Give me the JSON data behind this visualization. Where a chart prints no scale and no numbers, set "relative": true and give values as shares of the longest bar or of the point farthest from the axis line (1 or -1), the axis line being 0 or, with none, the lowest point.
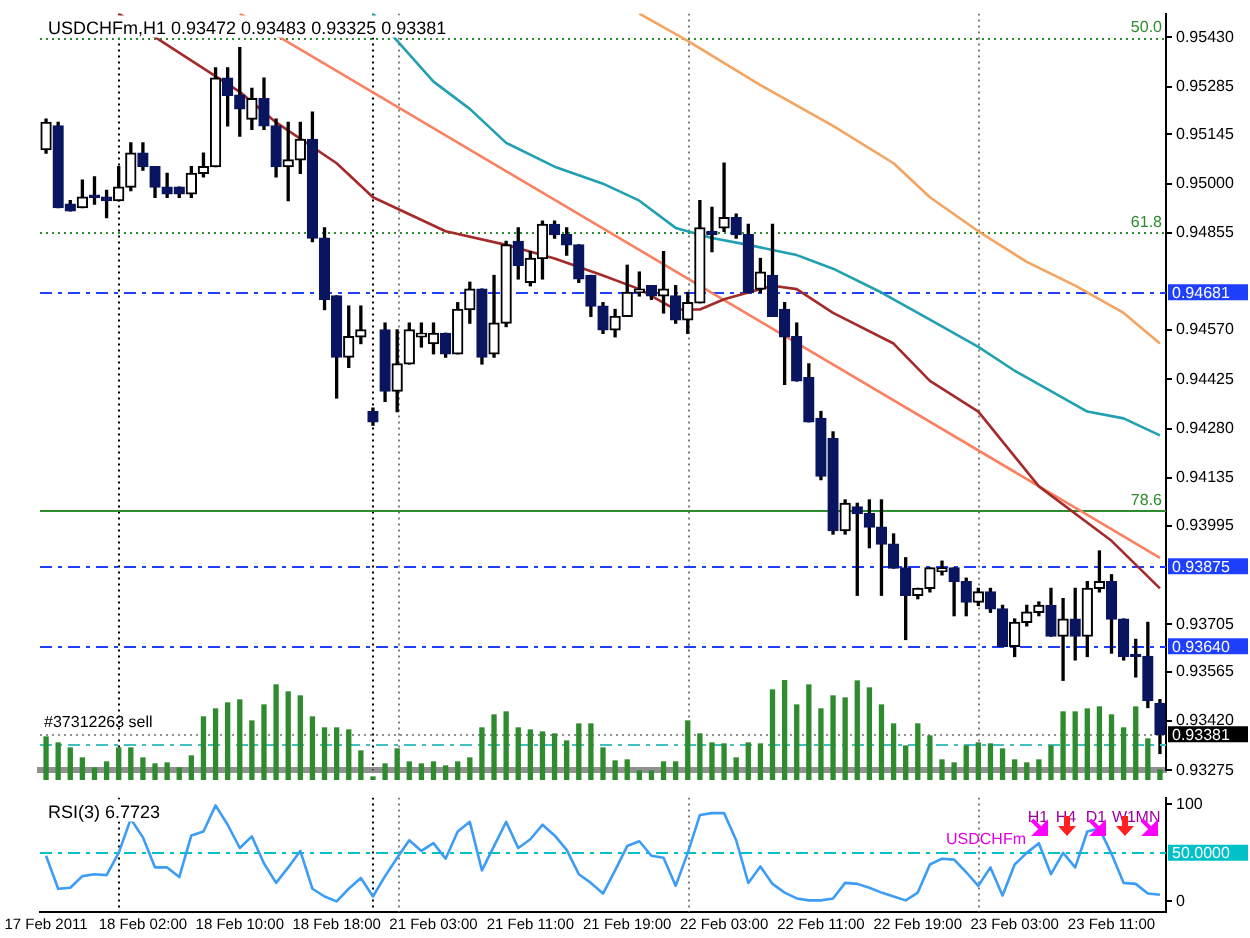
{
  "chart_data": [
    {
      "type": "candlestick",
      "title": "USDCHFm,H1 0.93472 0.93483 0.93325 0.93381",
      "tick_labels": "y",
      "categories": [
        "17 Feb 2011",
        null,
        null,
        null,
        null,
        null,
        null,
        null,
        "18 Feb 02:00",
        null,
        null,
        null,
        null,
        null,
        null,
        null,
        "18 Feb 10:00",
        null,
        null,
        null,
        null,
        null,
        null,
        null,
        "18 Feb 18:00",
        null,
        null,
        null,
        null,
        null,
        null,
        null,
        "21 Feb 03:00",
        null,
        null,
        null,
        null,
        null,
        null,
        null,
        "21 Feb 11:00",
        null,
        null,
        null,
        null,
        null,
        null,
        null,
        "21 Feb 19:00",
        null,
        null,
        null,
        null,
        null,
        null,
        null,
        "22 Feb 03:00",
        null,
        null,
        null,
        null,
        null,
        null,
        null,
        "22 Feb 11:00",
        null,
        null,
        null,
        null,
        null,
        null,
        null,
        "22 Feb 19:00",
        null,
        null,
        null,
        null,
        null,
        null,
        null,
        "23 Feb 03:00",
        null,
        null,
        null,
        null,
        null,
        null,
        null,
        "23 Feb 11:00",
        null,
        null,
        null,
        null
      ],
      "ohlc": [
        [
          0.951,
          0.9519,
          0.9509,
          0.9518
        ],
        [
          0.9517,
          0.9518,
          0.9493,
          0.9493
        ],
        [
          0.9494,
          0.9495,
          0.9492,
          0.9492
        ],
        [
          0.9493,
          0.9501,
          0.9493,
          0.9496
        ],
        [
          0.9496,
          0.9502,
          0.9494,
          0.9496
        ],
        [
          0.9496,
          0.9498,
          0.949,
          0.9495
        ],
        [
          0.9495,
          0.9505,
          0.9495,
          0.9499
        ],
        [
          0.9499,
          0.9512,
          0.9498,
          0.9509
        ],
        [
          0.9509,
          0.9512,
          0.9504,
          0.9505
        ],
        [
          0.9505,
          0.9505,
          0.9496,
          0.9499
        ],
        [
          0.9499,
          0.9503,
          0.9496,
          0.9497
        ],
        [
          0.9499,
          0.9499,
          0.9496,
          0.9497
        ],
        [
          0.9497,
          0.9505,
          0.9496,
          0.9503
        ],
        [
          0.9503,
          0.9509,
          0.9502,
          0.9505
        ],
        [
          0.9505,
          0.9534,
          0.9505,
          0.9531
        ],
        [
          0.9531,
          0.9534,
          0.9517,
          0.9526
        ],
        [
          0.9526,
          0.954,
          0.9514,
          0.9522
        ],
        [
          0.9519,
          0.9528,
          0.9516,
          0.9525
        ],
        [
          0.9525,
          0.9531,
          0.9516,
          0.9517
        ],
        [
          0.9517,
          0.9519,
          0.9502,
          0.9505
        ],
        [
          0.9505,
          0.9518,
          0.9495,
          0.9507
        ],
        [
          0.9507,
          0.9518,
          0.9503,
          0.9513
        ],
        [
          0.9513,
          0.9521,
          0.9483,
          0.9484
        ],
        [
          0.9484,
          0.9487,
          0.9463,
          0.9466
        ],
        [
          0.9467,
          0.9467,
          0.9437,
          0.9449
        ],
        [
          0.9449,
          0.9464,
          0.9446,
          0.9455
        ],
        [
          0.9455,
          0.9464,
          0.9453,
          0.9457
        ],
        [
          0.9433,
          0.9434,
          0.9429,
          0.943
        ],
        [
          0.9457,
          0.9459,
          0.9436,
          0.9439
        ],
        [
          0.9439,
          0.9457,
          0.9433,
          0.9447
        ],
        [
          0.9447,
          0.9459,
          0.9447,
          0.9457
        ],
        [
          0.9455,
          0.9459,
          0.9452,
          0.9456
        ],
        [
          0.9453,
          0.9459,
          0.945,
          0.9456
        ],
        [
          0.9456,
          0.9456,
          0.9449,
          0.945
        ],
        [
          0.945,
          0.9465,
          0.945,
          0.9463
        ],
        [
          0.9463,
          0.9471,
          0.9459,
          0.9469
        ],
        [
          0.9469,
          0.9469,
          0.9447,
          0.9449
        ],
        [
          0.945,
          0.9473,
          0.9449,
          0.9459
        ],
        [
          0.9459,
          0.9483,
          0.9458,
          0.9482
        ],
        [
          0.9483,
          0.9487,
          0.9472,
          0.9476
        ],
        [
          0.9471,
          0.948,
          0.947,
          0.9478
        ],
        [
          0.9478,
          0.9489,
          0.9472,
          0.9488
        ],
        [
          0.9488,
          0.9489,
          0.9484,
          0.9485
        ],
        [
          0.9485,
          0.9487,
          0.9479,
          0.9482
        ],
        [
          0.9482,
          0.9482,
          0.9471,
          0.9472
        ],
        [
          0.9473,
          0.9473,
          0.9461,
          0.9464
        ],
        [
          0.9464,
          0.9465,
          0.9456,
          0.9457
        ],
        [
          0.9457,
          0.9463,
          0.9455,
          0.9461
        ],
        [
          0.9461,
          0.9476,
          0.9461,
          0.9468
        ],
        [
          0.9468,
          0.9474,
          0.9467,
          0.9469
        ],
        [
          0.947,
          0.947,
          0.9466,
          0.9467
        ],
        [
          0.9467,
          0.948,
          0.9462,
          0.9469
        ],
        [
          0.9467,
          0.947,
          0.9459,
          0.946
        ],
        [
          0.946,
          0.9468,
          0.9456,
          0.9465
        ],
        [
          0.9465,
          0.9495,
          0.9465,
          0.9487
        ],
        [
          0.9486,
          0.9493,
          0.948,
          0.9485
        ],
        [
          0.9487,
          0.9506,
          0.9486,
          0.949
        ],
        [
          0.949,
          0.9491,
          0.9484,
          0.9485
        ],
        [
          0.9485,
          0.9488,
          0.9468,
          0.9468
        ],
        [
          0.9469,
          0.9478,
          0.9468,
          0.9474
        ],
        [
          0.9473,
          0.9488,
          0.9461,
          0.9461
        ],
        [
          0.9463,
          0.9465,
          0.9441,
          0.9455
        ],
        [
          0.9455,
          0.9459,
          0.9442,
          0.9442
        ],
        [
          0.9443,
          0.9447,
          0.943,
          0.943
        ],
        [
          0.9431,
          0.9433,
          0.9413,
          0.9414
        ],
        [
          0.9425,
          0.9427,
          0.9397,
          0.9398
        ],
        [
          0.9398,
          0.9407,
          0.9397,
          0.9406
        ],
        [
          0.9405,
          0.9406,
          0.9379,
          0.9403
        ],
        [
          0.9403,
          0.9407,
          0.9393,
          0.9399
        ],
        [
          0.9399,
          0.9407,
          0.9379,
          0.9394
        ],
        [
          0.9394,
          0.9397,
          0.9387,
          0.9387
        ],
        [
          0.9387,
          0.939,
          0.9366,
          0.9379
        ],
        [
          0.9379,
          0.9381,
          0.9378,
          0.9381
        ],
        [
          0.9381,
          0.9387,
          0.938,
          0.9387
        ],
        [
          0.9386,
          0.9389,
          0.9385,
          0.9387
        ],
        [
          0.9387,
          0.9387,
          0.9373,
          0.9383
        ],
        [
          0.9383,
          0.9384,
          0.9373,
          0.9377
        ],
        [
          0.9377,
          0.9381,
          0.9376,
          0.938
        ],
        [
          0.938,
          0.9381,
          0.9374,
          0.9375
        ],
        [
          0.9375,
          0.9376,
          0.9364,
          0.9364
        ],
        [
          0.9364,
          0.9372,
          0.9361,
          0.9371
        ],
        [
          0.9371,
          0.9376,
          0.937,
          0.9374
        ],
        [
          0.9374,
          0.9377,
          0.9373,
          0.9376
        ],
        [
          0.9376,
          0.9381,
          0.9367,
          0.9367
        ],
        [
          0.9367,
          0.9378,
          0.9354,
          0.9372
        ],
        [
          0.9372,
          0.9381,
          0.936,
          0.9367
        ],
        [
          0.9367,
          0.9383,
          0.9361,
          0.9381
        ],
        [
          0.9381,
          0.9392,
          0.938,
          0.9383
        ],
        [
          0.9383,
          0.9385,
          0.9362,
          0.9372
        ],
        [
          0.9372,
          0.9372,
          0.936,
          0.9361
        ],
        [
          0.9361,
          0.9366,
          0.9355,
          0.9361
        ],
        [
          0.9361,
          0.9371,
          0.9346,
          0.9348
        ],
        [
          0.93472,
          0.93483,
          0.93325,
          0.93381
        ]
      ],
      "series": [
        {
          "type": "line",
          "color": "#a52a2a",
          "values": [
            null,
            null,
            null,
            null,
            null,
            null,
            0.955,
            null,
            null,
            null,
            null,
            null,
            null,
            null,
            null,
            null,
            0.9527,
            null,
            null,
            0.9518,
            null,
            null,
            null,
            null,
            0.9506,
            null,
            null,
            0.9496,
            null,
            null,
            null,
            null,
            null,
            0.9486,
            null,
            null,
            null,
            null,
            0.9482,
            null,
            null,
            null,
            0.9478,
            null,
            null,
            null,
            0.9473,
            null,
            null,
            0.9469,
            null,
            null,
            0.9463,
            null,
            0.9463,
            null,
            0.9466,
            null,
            null,
            null,
            0.947,
            null,
            0.9469,
            null,
            null,
            0.9462,
            null,
            null,
            null,
            null,
            0.9453,
            null,
            null,
            0.9442,
            null,
            null,
            null,
            0.9433,
            null,
            null,
            null,
            null,
            0.9411,
            null,
            null,
            null,
            null,
            null,
            0.9395,
            null,
            null,
            null,
            0.9381
          ]
        },
        {
          "type": "line",
          "color": "#20a0b0",
          "values": [
            null,
            null,
            null,
            null,
            null,
            null,
            null,
            null,
            null,
            null,
            null,
            null,
            null,
            null,
            null,
            null,
            null,
            null,
            null,
            null,
            null,
            null,
            null,
            null,
            null,
            null,
            null,
            0.955,
            null,
            null,
            null,
            null,
            0.953,
            null,
            null,
            0.9522,
            null,
            null,
            0.9512,
            null,
            null,
            null,
            0.9505,
            null,
            null,
            null,
            0.95,
            null,
            null,
            0.9495,
            null,
            null,
            0.9487,
            null,
            null,
            0.9484,
            null,
            null,
            0.9482,
            null,
            null,
            null,
            0.9479,
            null,
            null,
            0.9475,
            null,
            null,
            null,
            0.9468,
            null,
            null,
            null,
            0.946,
            null,
            null,
            null,
            0.9452,
            null,
            null,
            0.9445,
            null,
            null,
            0.9439,
            null,
            null,
            0.9433,
            null,
            null,
            0.9431,
            null,
            null,
            0.9426
          ]
        },
        {
          "type": "line",
          "color": "#f4a460",
          "values": [
            null,
            null,
            null,
            null,
            null,
            null,
            null,
            null,
            null,
            null,
            null,
            null,
            null,
            null,
            null,
            null,
            null,
            null,
            null,
            null,
            null,
            null,
            null,
            null,
            null,
            null,
            null,
            null,
            null,
            null,
            null,
            null,
            null,
            null,
            null,
            null,
            null,
            null,
            null,
            null,
            null,
            null,
            null,
            null,
            null,
            null,
            null,
            null,
            null,
            0.955,
            null,
            null,
            null,
            0.9542,
            null,
            null,
            null,
            null,
            null,
            0.9529,
            null,
            null,
            null,
            null,
            null,
            0.9517,
            null,
            null,
            null,
            null,
            0.9506,
            null,
            null,
            0.9496,
            null,
            null,
            null,
            0.9486,
            null,
            null,
            null,
            0.9477,
            null,
            null,
            null,
            0.947,
            null,
            null,
            null,
            0.9462,
            null,
            null,
            0.9453
          ]
        },
        {
          "type": "line",
          "color": "#fa8060",
          "values": [
            null,
            null,
            null,
            null,
            null,
            null,
            null,
            null,
            null,
            null,
            null,
            null,
            null,
            null,
            null,
            null,
            0.955,
            null,
            null,
            null,
            null,
            null,
            null,
            null,
            null,
            null,
            null,
            null,
            null,
            null,
            null,
            null,
            null,
            null,
            null,
            null,
            null,
            null,
            null,
            null,
            null,
            null,
            null,
            null,
            null,
            null,
            null,
            null,
            null,
            null,
            null,
            null,
            null,
            null,
            null,
            null,
            null,
            null,
            null,
            null,
            null,
            null,
            null,
            null,
            null,
            null,
            null,
            null,
            null,
            null,
            null,
            null,
            null,
            null,
            null,
            null,
            null,
            null,
            null,
            null,
            null,
            null,
            null,
            null,
            null,
            null,
            null,
            null,
            null,
            null,
            null,
            null,
            0.939
          ]
        }
      ],
      "ylim": [
        0.93275,
        0.955
      ],
      "yticks": [
        {
          "value": 0.9543,
          "label": "0.95430"
        },
        {
          "value": 0.95285,
          "label": "0.95285"
        },
        {
          "value": 0.95145,
          "label": "0.95145"
        },
        {
          "value": 0.95,
          "label": "0.95000"
        },
        {
          "value": 0.94855,
          "label": "0.94855"
        },
        {
          "value": 0.9457,
          "label": "0.94570"
        },
        {
          "value": 0.94425,
          "label": "0.94425"
        },
        {
          "value": 0.9428,
          "label": "0.94280"
        },
        {
          "value": 0.94135,
          "label": "0.94135"
        },
        {
          "value": 0.93995,
          "label": "0.93995"
        },
        {
          "value": 0.93705,
          "label": "0.93705"
        },
        {
          "value": 0.93565,
          "label": "0.93565"
        },
        {
          "value": 0.9342,
          "label": "0.93420"
        },
        {
          "value": 0.93275,
          "label": "0.93275"
        }
      ],
      "ref_lines": [
        {
          "axis": "y",
          "value": 0.9543,
          "color": "#2e8b2e",
          "line_style": "dotted"
        },
        {
          "axis": "y",
          "value": 0.94855,
          "color": "#2e8b2e",
          "line_style": "dotted"
        },
        {
          "axis": "y",
          "value": 0.9404,
          "color": "#2e8b2e",
          "line_style": "solid"
        },
        {
          "axis": "y",
          "value": 0.94681,
          "label": "0.94681",
          "color": "#1f3fff",
          "line_style": "dashed"
        },
        {
          "axis": "y",
          "value": 0.93875,
          "label": "0.93875",
          "color": "#1f3fff",
          "line_style": "dashed"
        },
        {
          "axis": "y",
          "value": 0.9364,
          "label": "0.93640",
          "color": "#1f3fff",
          "line_style": "dashed"
        },
        {
          "axis": "y",
          "value": 0.93381,
          "label": "0.93381",
          "color": "#909090",
          "line_style": "dotted"
        }
      ],
      "annotations": [
        {
          "text": "50.0",
          "y": 0.9543
        },
        {
          "text": "61.8",
          "y": 0.94855
        },
        {
          "text": "78.6",
          "y": 0.9404
        },
        {
          "text": "#37312263 sell",
          "x": "17 Feb 2011",
          "y": 0.93381
        }
      ]
    },
    {
      "type": "bar",
      "relative": true,
      "tick_labels": false,
      "color": "#2e8b2e",
      "categories": [
        "17 Feb 2011",
        null,
        null,
        null,
        null,
        null,
        null,
        null,
        "18 Feb 02:00",
        null,
        null,
        null,
        null,
        null,
        null,
        null,
        "18 Feb 10:00",
        null,
        null,
        null,
        null,
        null,
        null,
        null,
        "18 Feb 18:00",
        null,
        null,
        null,
        null,
        null,
        null,
        null,
        "21 Feb 03:00",
        null,
        null,
        null,
        null,
        null,
        null,
        null,
        "21 Feb 11:00",
        null,
        null,
        null,
        null,
        null,
        null,
        null,
        "21 Feb 19:00",
        null,
        null,
        null,
        null,
        null,
        null,
        null,
        "22 Feb 03:00",
        null,
        null,
        null,
        null,
        null,
        null,
        null,
        "22 Feb 11:00",
        null,
        null,
        null,
        null,
        null,
        null,
        null,
        "22 Feb 19:00",
        null,
        null,
        null,
        null,
        null,
        null,
        null,
        "23 Feb 03:00",
        null,
        null,
        null,
        null,
        null,
        null,
        null,
        "23 Feb 11:00",
        null,
        null,
        null,
        null
      ],
      "values": [
        0.43,
        0.37,
        0.32,
        0.22,
        0.12,
        0.18,
        0.32,
        0.32,
        0.22,
        0.16,
        0.17,
        0.12,
        0.24,
        0.63,
        0.71,
        0.77,
        0.8,
        0.59,
        0.75,
        0.95,
        0.88,
        0.84,
        0.63,
        0.52,
        0.52,
        0.5,
        0.29,
        0.03,
        0.16,
        0.31,
        0.18,
        0.16,
        0.18,
        0.14,
        0.18,
        0.22,
        0.52,
        0.65,
        0.68,
        0.52,
        0.5,
        0.48,
        0.46,
        0.39,
        0.56,
        0.56,
        0.32,
        0.19,
        0.2,
        0.09,
        0.09,
        0.18,
        0.18,
        0.59,
        0.46,
        0.37,
        0.36,
        0.22,
        0.37,
        0.36,
        0.9,
        1,
        0.75,
        0.95,
        0.71,
        0.84,
        0.82,
        0.99,
        0.92,
        0.75,
        0.56,
        0.34,
        0.56,
        0.44,
        0.2,
        0.17,
        0.34,
        0.37,
        0.36,
        0.31,
        0.2,
        0.17,
        0.2,
        0.34,
        0.68,
        0.68,
        0.71,
        0.73,
        0.65,
        0.52,
        0.73,
        0.41,
        0.1
      ],
      "ref_lines": [
        {
          "axis": "y",
          "value": 0.36,
          "color": "#40c0c0",
          "line_style": "dashed"
        }
      ]
    },
    {
      "type": "line",
      "title": "RSI(3) 6.7723",
      "color": "#3d9cf5",
      "categories": [
        "17 Feb 2011",
        null,
        null,
        null,
        null,
        null,
        null,
        null,
        "18 Feb 02:00",
        null,
        null,
        null,
        null,
        null,
        null,
        null,
        "18 Feb 10:00",
        null,
        null,
        null,
        null,
        null,
        null,
        null,
        "18 Feb 18:00",
        null,
        null,
        null,
        null,
        null,
        null,
        null,
        "21 Feb 03:00",
        null,
        null,
        null,
        null,
        null,
        null,
        null,
        "21 Feb 11:00",
        null,
        null,
        null,
        null,
        null,
        null,
        null,
        "21 Feb 19:00",
        null,
        null,
        null,
        null,
        null,
        null,
        null,
        "22 Feb 03:00",
        null,
        null,
        null,
        null,
        null,
        null,
        null,
        "22 Feb 11:00",
        null,
        null,
        null,
        null,
        null,
        null,
        null,
        "22 Feb 19:00",
        null,
        null,
        null,
        null,
        null,
        null,
        null,
        "23 Feb 03:00",
        null,
        null,
        null,
        null,
        null,
        null,
        null,
        "23 Feb 11:00",
        null,
        null,
        null,
        null
      ],
      "values": [
        47,
        13,
        14,
        26,
        28,
        27,
        50,
        85,
        66,
        35,
        35,
        25,
        68,
        72,
        99,
        79,
        55,
        67,
        39,
        19,
        35,
        52,
        13,
        5,
        0,
        13,
        24,
        5,
        26,
        45,
        63,
        52,
        60,
        44,
        72,
        82,
        32,
        57,
        82,
        55,
        64,
        79,
        68,
        53,
        28,
        19,
        8,
        32,
        57,
        62,
        47,
        45,
        16,
        50,
        89,
        91,
        91,
        63,
        19,
        36,
        18,
        9,
        3,
        1,
        1,
        3,
        19,
        18,
        14,
        9,
        5,
        1,
        9,
        38,
        44,
        43,
        30,
        16,
        35,
        6,
        38,
        50,
        60,
        28,
        50,
        35,
        72,
        75,
        49,
        19,
        18,
        8,
        6.7723
      ],
      "ylim": [
        -11,
        107
      ],
      "yticks": [
        0,
        100
      ],
      "ref_lines": [
        {
          "axis": "y",
          "value": 50,
          "label": "50.0000",
          "color": "#00c0c8",
          "line_style": "dashed"
        }
      ],
      "annotations": [
        "USDCHFm",
        "H1",
        "H4",
        "D1",
        "W1",
        "MN"
      ]
    }
  ]
}
